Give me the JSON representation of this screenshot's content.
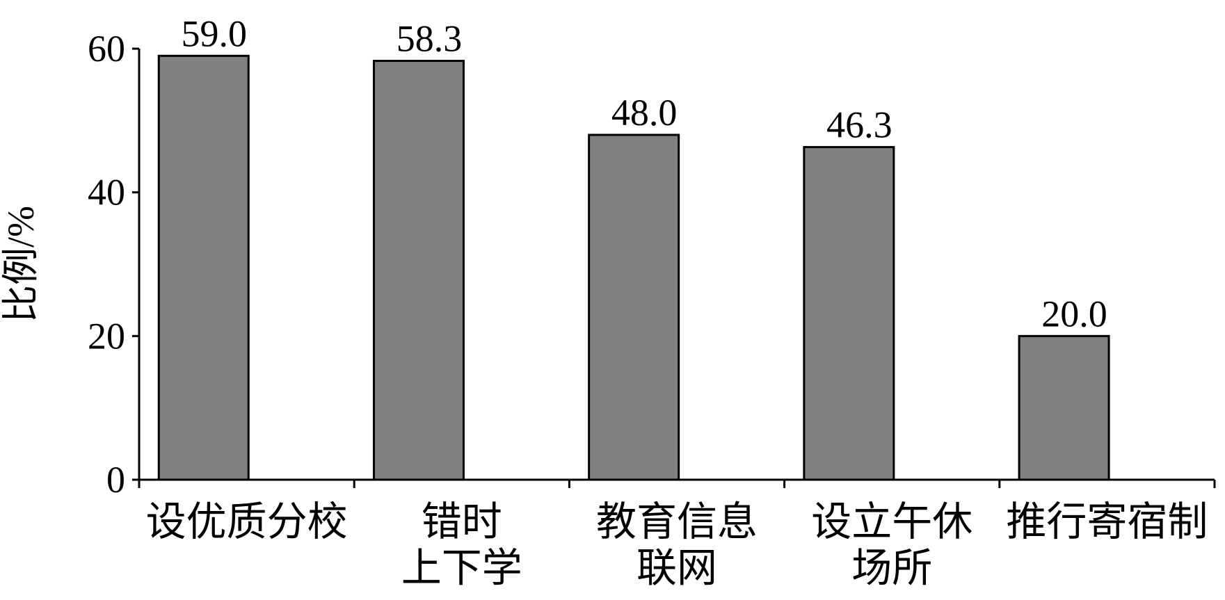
{
  "chart_data": {
    "type": "bar",
    "y_label": "比例/%",
    "categories": [
      "设优质分校",
      "错时\n上下学",
      "教育信息\n联网",
      "设立午休\n场所",
      "推行寄宿制"
    ],
    "values": [
      59.0,
      58.3,
      48.0,
      46.3,
      20.0
    ],
    "value_labels": [
      "59.0",
      "58.3",
      "48.0",
      "46.3",
      "20.0"
    ],
    "color": "#808080",
    "ylim": [
      0,
      60
    ],
    "yticks": [
      0,
      20,
      40,
      60
    ],
    "grid": false
  }
}
